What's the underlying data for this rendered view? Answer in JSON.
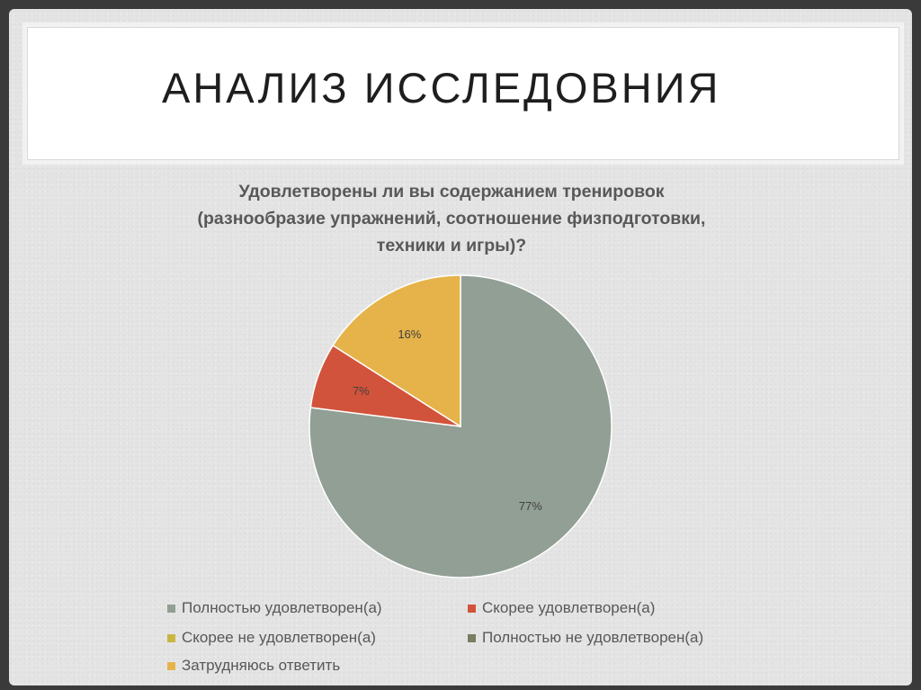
{
  "slide": {
    "title": "АНАЛИЗ ИССЛЕДОВНИЯ"
  },
  "chart_data": {
    "type": "pie",
    "title_lines": [
      "Удовлетворены ли вы содержанием тренировок",
      "(разнообразие упражнений, соотношение физподготовки,",
      "техники и игры)?"
    ],
    "start_angle_deg": 0,
    "direction": "clockwise",
    "categories": [
      "Полностью удовлетворен(а)",
      "Скорее удовлетворен(а)",
      "Скорее не удовлетворен(а)",
      "Полностью не удовлетворен(а)",
      "Затрудняюсь ответить"
    ],
    "values": [
      77,
      7,
      0,
      0,
      16
    ],
    "data_labels": [
      "77%",
      "7%",
      "",
      "",
      "16%"
    ],
    "colors": [
      "#919f95",
      "#d2533b",
      "#c9b643",
      "#7a7d5f",
      "#e5b34a"
    ],
    "legend_position": "bottom"
  }
}
